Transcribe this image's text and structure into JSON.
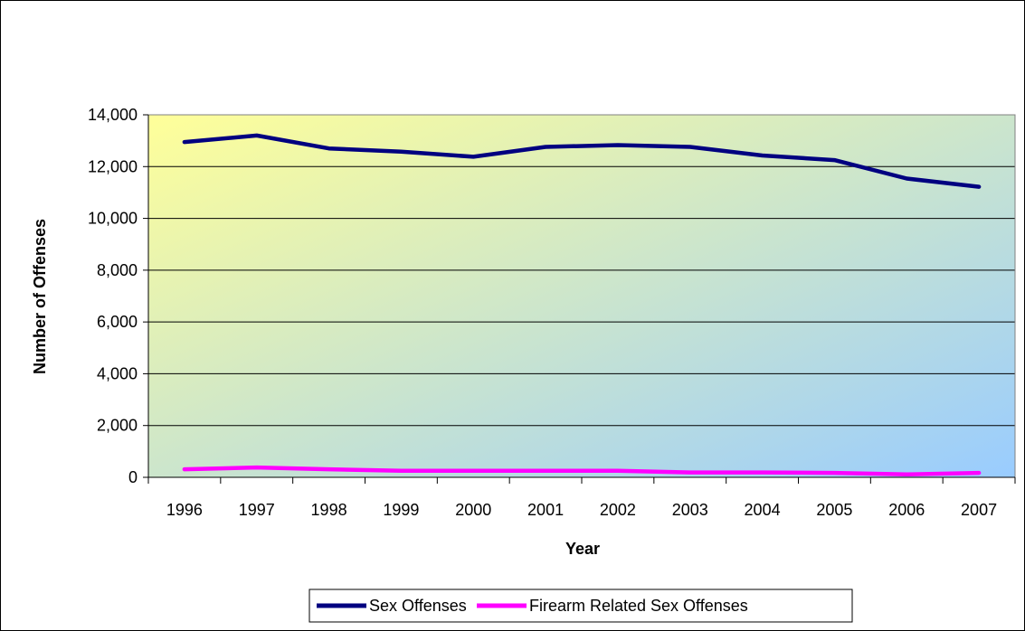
{
  "chart_data": {
    "type": "line",
    "title": "",
    "xlabel": "Year",
    "ylabel": "Number of Offenses",
    "categories": [
      "1996",
      "1997",
      "1998",
      "1999",
      "2000",
      "2001",
      "2002",
      "2003",
      "2004",
      "2005",
      "2006",
      "2007"
    ],
    "ylim": [
      0,
      14000
    ],
    "yticks": [
      "0",
      "2,000",
      "4,000",
      "6,000",
      "8,000",
      "10,000",
      "12,000",
      "14,000"
    ],
    "ytick_values": [
      0,
      2000,
      4000,
      6000,
      8000,
      10000,
      12000,
      14000
    ],
    "grid": true,
    "legend_position": "bottom",
    "series": [
      {
        "name": "Sex Offenses",
        "color": "#000080",
        "values": [
          12950,
          13200,
          12700,
          12580,
          12380,
          12760,
          12830,
          12760,
          12430,
          12250,
          11540,
          11220
        ]
      },
      {
        "name": "Firearm Related Sex Offenses",
        "color": "#ff00ff",
        "values": [
          310,
          380,
          310,
          250,
          250,
          250,
          250,
          190,
          190,
          170,
          110,
          170
        ]
      }
    ],
    "background_gradient": [
      "#ffff99",
      "#99ccff"
    ]
  }
}
